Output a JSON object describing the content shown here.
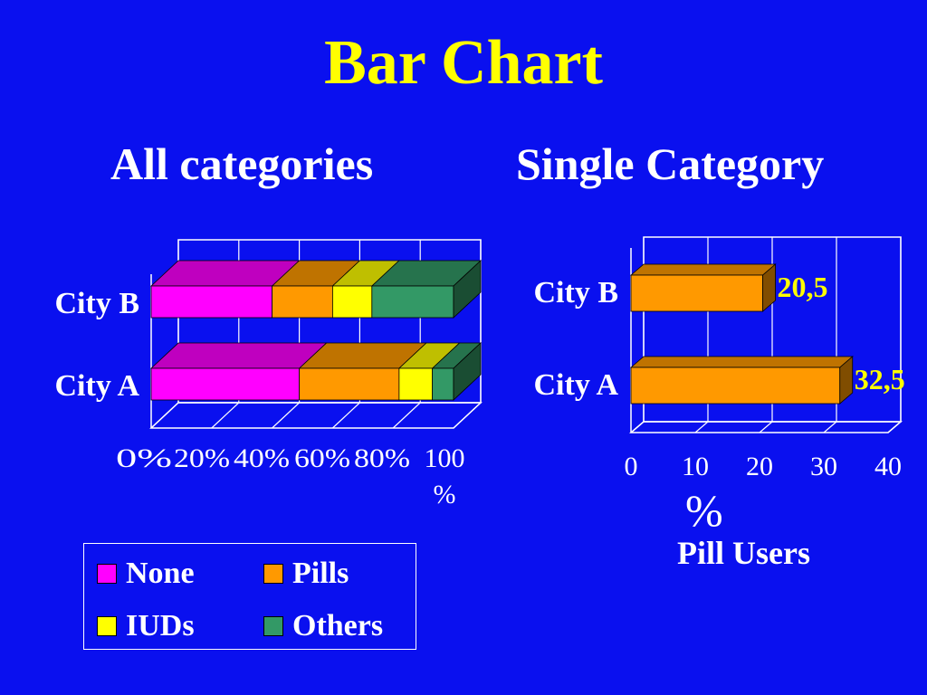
{
  "slide": {
    "title": "Bar Chart",
    "left_subtitle": "All categories",
    "right_subtitle": "Single Category"
  },
  "colors": {
    "background": "#0a10ef",
    "title": "#ffff00",
    "none": "#ff00ff",
    "pills": "#ff9900",
    "iuds": "#ffff00",
    "others": "#339966"
  },
  "chart_data": [
    {
      "type": "bar",
      "orientation": "horizontal",
      "stacked": "percent",
      "title": "All categories",
      "categories": [
        "City B",
        "City A"
      ],
      "series": [
        {
          "name": "None",
          "values": [
            40,
            49
          ]
        },
        {
          "name": "Pills",
          "values": [
            20,
            33
          ]
        },
        {
          "name": "IUDs",
          "values": [
            13,
            11
          ]
        },
        {
          "name": "Others",
          "values": [
            27,
            7
          ]
        }
      ],
      "xlim": [
        0,
        100
      ],
      "xticks": [
        "0%",
        "20%",
        "40%",
        "60%",
        "80%",
        "100%"
      ],
      "grid": true,
      "legend": {
        "position": "bottom",
        "entries": [
          "None",
          "Pills",
          "IUDs",
          "Others"
        ]
      }
    },
    {
      "type": "bar",
      "orientation": "horizontal",
      "title": "Single Category",
      "categories": [
        "City B",
        "City A"
      ],
      "values": [
        20.5,
        32.5
      ],
      "data_labels": [
        "20,5",
        "32,5"
      ],
      "xlim": [
        0,
        40
      ],
      "xticks": [
        "0",
        "10",
        "20",
        "30",
        "40"
      ],
      "unit": "%",
      "xlabel": "Pill Users",
      "grid": true
    }
  ]
}
